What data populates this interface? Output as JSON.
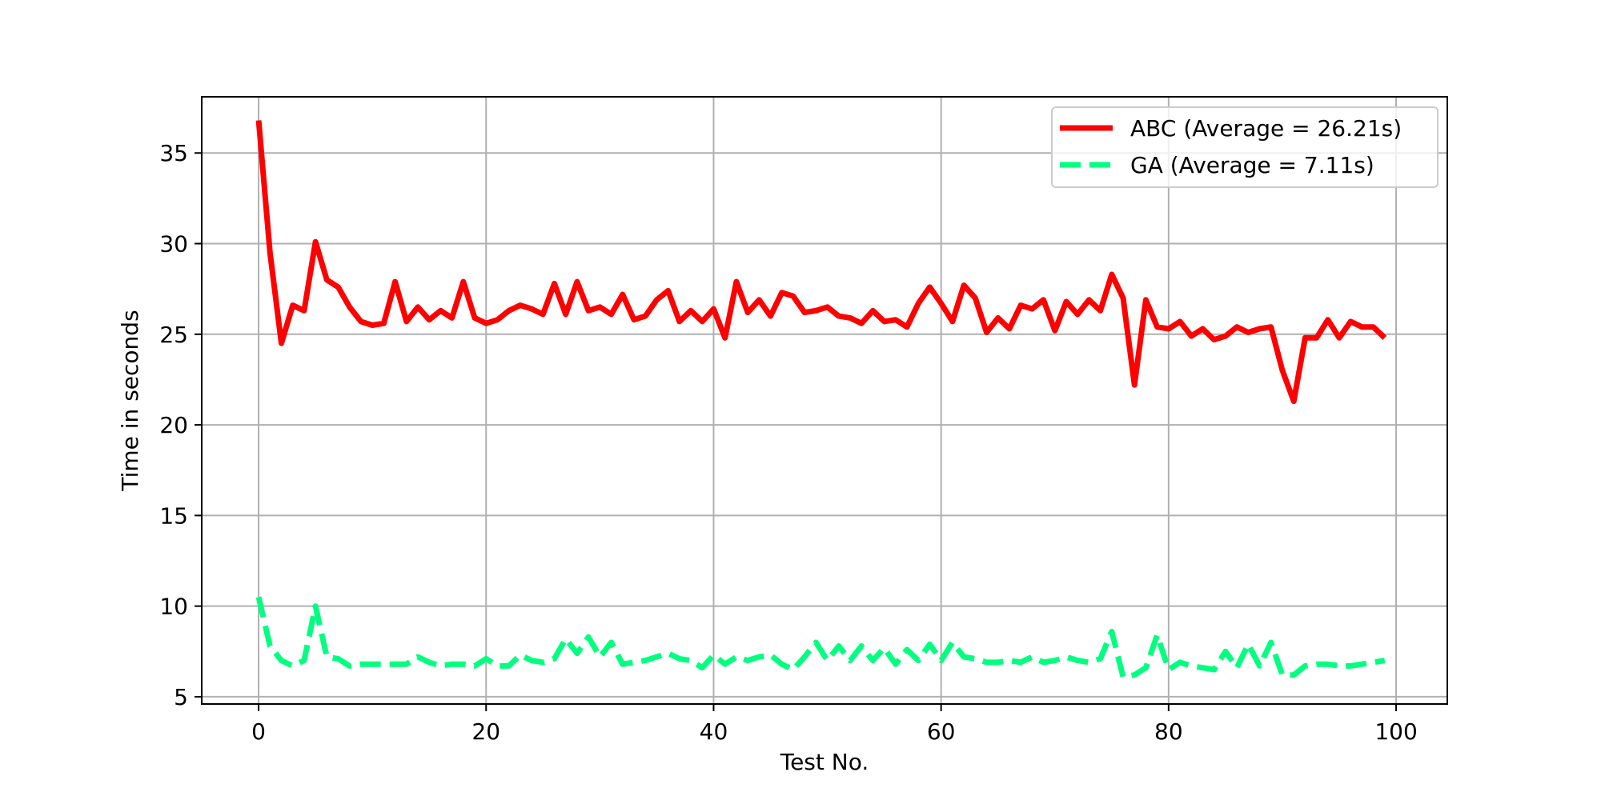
{
  "chart_data": {
    "type": "line",
    "title": "",
    "xlabel": "Test No.",
    "ylabel": "Time in seconds",
    "xlim": [
      -5,
      104.5
    ],
    "ylim": [
      4.6,
      38.1
    ],
    "xticks": [
      0,
      20,
      40,
      60,
      80,
      100
    ],
    "yticks": [
      5,
      10,
      15,
      20,
      25,
      30,
      35
    ],
    "xtick_labels": [
      "0",
      "20",
      "40",
      "60",
      "80",
      "100"
    ],
    "ytick_labels": [
      "5",
      "10",
      "15",
      "20",
      "25",
      "30",
      "35"
    ],
    "grid": true,
    "legend_position": "top-right",
    "x": [
      0,
      1,
      2,
      3,
      4,
      5,
      6,
      7,
      8,
      9,
      10,
      11,
      12,
      13,
      14,
      15,
      16,
      17,
      18,
      19,
      20,
      21,
      22,
      23,
      24,
      25,
      26,
      27,
      28,
      29,
      30,
      31,
      32,
      33,
      34,
      35,
      36,
      37,
      38,
      39,
      40,
      41,
      42,
      43,
      44,
      45,
      46,
      47,
      48,
      49,
      50,
      51,
      52,
      53,
      54,
      55,
      56,
      57,
      58,
      59,
      60,
      61,
      62,
      63,
      64,
      65,
      66,
      67,
      68,
      69,
      70,
      71,
      72,
      73,
      74,
      75,
      76,
      77,
      78,
      79,
      80,
      81,
      82,
      83,
      84,
      85,
      86,
      87,
      88,
      89,
      90,
      91,
      92,
      93,
      94,
      95,
      96,
      97,
      98,
      99
    ],
    "series": [
      {
        "name": "ABC (Average = 26.21s)",
        "color": "#ff0000",
        "style": "solid",
        "values": [
          36.8,
          29.5,
          24.5,
          26.6,
          26.3,
          30.1,
          28.0,
          27.6,
          26.5,
          25.7,
          25.5,
          25.6,
          27.9,
          25.7,
          26.5,
          25.8,
          26.3,
          25.9,
          27.9,
          25.9,
          25.6,
          25.8,
          26.3,
          26.6,
          26.4,
          26.1,
          27.8,
          26.1,
          27.9,
          26.3,
          26.5,
          26.1,
          27.2,
          25.8,
          26.0,
          26.9,
          27.4,
          25.7,
          26.3,
          25.7,
          26.4,
          24.8,
          27.9,
          26.2,
          26.9,
          26.0,
          27.3,
          27.1,
          26.2,
          26.3,
          26.5,
          26.0,
          25.9,
          25.6,
          26.3,
          25.7,
          25.8,
          25.4,
          26.7,
          27.6,
          26.7,
          25.7,
          27.7,
          27.0,
          25.1,
          25.9,
          25.3,
          26.6,
          26.4,
          26.9,
          25.2,
          26.8,
          26.1,
          26.9,
          26.3,
          28.3,
          27.0,
          22.2,
          26.9,
          25.4,
          25.3,
          25.7,
          24.9,
          25.3,
          24.7,
          24.9,
          25.4,
          25.1,
          25.3,
          25.4,
          23.0,
          21.3,
          24.8,
          24.8,
          25.8,
          24.8,
          25.7,
          25.4,
          25.4,
          24.8
        ]
      },
      {
        "name": "GA (Average = 7.11s)",
        "color": "#00ff7f",
        "style": "dashed",
        "values": [
          10.5,
          7.8,
          7.0,
          6.7,
          7.0,
          10.0,
          7.2,
          7.1,
          6.7,
          6.8,
          6.8,
          6.8,
          6.8,
          6.8,
          7.2,
          6.9,
          6.7,
          6.8,
          6.8,
          6.7,
          7.1,
          6.7,
          6.7,
          7.3,
          7.0,
          6.9,
          7.1,
          8.2,
          7.4,
          8.3,
          7.2,
          8.0,
          6.8,
          6.9,
          7.0,
          7.2,
          7.4,
          7.1,
          7.0,
          6.6,
          7.3,
          6.8,
          7.2,
          7.0,
          7.2,
          7.3,
          6.8,
          6.5,
          7.2,
          8.0,
          7.0,
          7.8,
          7.0,
          7.8,
          7.0,
          7.7,
          6.8,
          7.6,
          7.0,
          7.9,
          7.0,
          8.0,
          7.2,
          7.1,
          6.9,
          6.9,
          7.0,
          6.9,
          7.2,
          6.9,
          7.0,
          7.2,
          7.0,
          6.9,
          7.1,
          8.6,
          6.1,
          6.2,
          6.6,
          8.4,
          6.5,
          6.9,
          6.7,
          6.6,
          6.5,
          7.5,
          6.6,
          7.9,
          6.7,
          8.0,
          6.2,
          6.2,
          6.7,
          6.8,
          6.8,
          6.7,
          6.7,
          6.8,
          6.9,
          7.0
        ]
      }
    ]
  }
}
